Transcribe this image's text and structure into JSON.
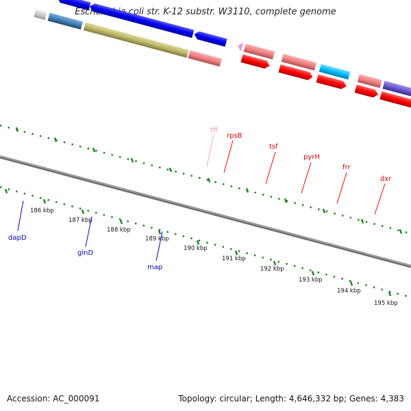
{
  "title": "Escherichia coli str. K-12 substr. W3110, complete genome",
  "footer": {
    "accession": "Accession: AC_000091",
    "summary": "Topology: circular; Length: 4,646,332 bp; Genes: 4,383"
  },
  "kbp_labels": [
    "186 kbp",
    "187 kbp",
    "188 kbp",
    "189 kbp",
    "190 kbp",
    "191 kbp",
    "192 kbp",
    "193 kbp",
    "194 kbp",
    "195 kbp"
  ],
  "genes": {
    "tff": "tff",
    "rpsB": "rpsB",
    "tsf": "tsf",
    "pyrH": "pyrH",
    "frr": "frr",
    "dxr": "dxr",
    "dapD": "dapD",
    "glnD": "glnD",
    "map": "map"
  },
  "colors": {
    "forward_cds": "#0000ee",
    "reverse_cds": "#ff0000",
    "rna_like": "#f08080",
    "cyan_gene": "#00bfff",
    "purple_gene": "#6a5acd",
    "olive_gene": "#bdb76b",
    "steel_gene": "#4682b4",
    "tick_green": "#1a8a1a",
    "backbone": "#8a8a8a"
  }
}
